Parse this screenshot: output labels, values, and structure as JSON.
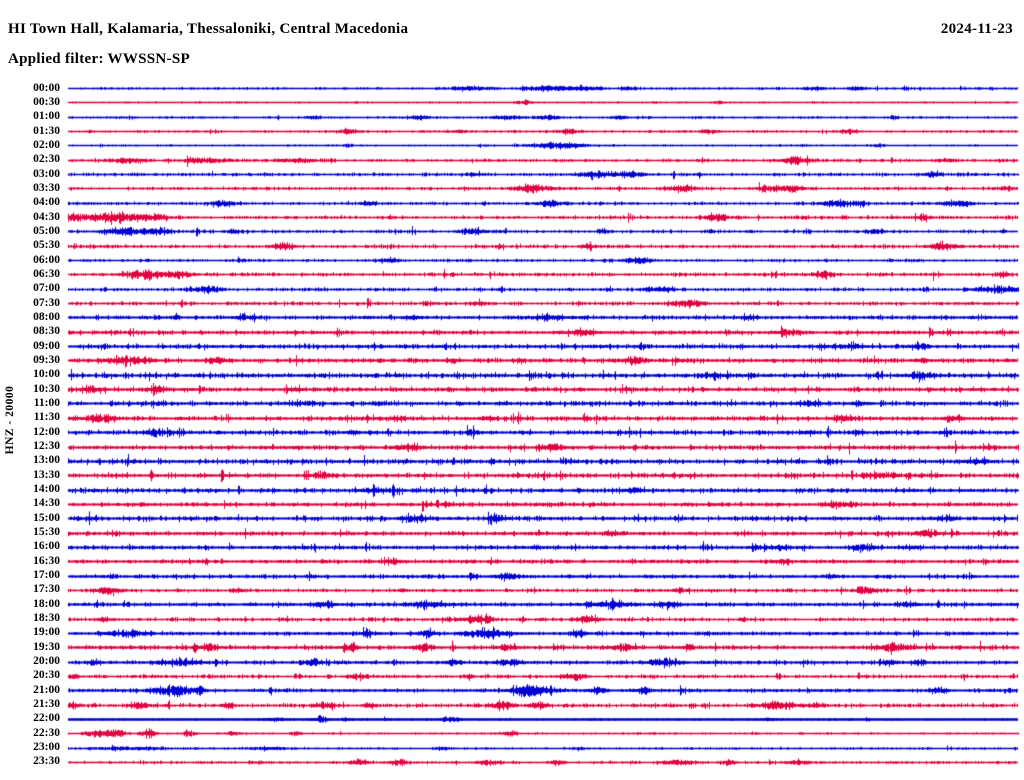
{
  "header": {
    "title": "HI Town Hall, Kalamaria, Thessaloniki, Central Macedonia",
    "date": "2024-11-23",
    "filter": "Applied filter: WWSSN-SP"
  },
  "axis": {
    "y_label": "HNZ - 20000",
    "minutes_per_line": 30,
    "first_row": "00:00",
    "last_row": "23:30"
  },
  "colors": {
    "background": "#ffffff",
    "text": "#000000",
    "trace_even": "#0000d2",
    "trace_odd": "#e1003f"
  },
  "chart_data": {
    "type": "line",
    "subtype": "helicorder-dayplot",
    "title": "HI Town Hall, Kalamaria, Thessaloniki, Central Macedonia",
    "date": "2024-11-23",
    "applied_filter": "WWSSN-SP",
    "channel": "HNZ",
    "scale": 20000,
    "minutes_per_line": 30,
    "legend_position": "none",
    "grid": false,
    "rows": [
      {
        "t": "00:00",
        "n": 0.45,
        "w": 1.5,
        "b": [
          [
            400,
            1.5,
            25
          ],
          [
            478,
            2,
            18
          ],
          [
            512,
            2.5,
            20
          ],
          [
            560,
            1.5,
            10
          ],
          [
            745,
            1.5,
            12
          ],
          [
            790,
            1.5,
            8
          ]
        ]
      },
      {
        "t": "00:30",
        "n": 0.3,
        "w": 1.5,
        "b": [
          [
            455,
            2,
            8
          ],
          [
            650,
            1.2,
            6
          ]
        ]
      },
      {
        "t": "01:00",
        "n": 0.45,
        "w": 1.5,
        "b": [
          [
            245,
            1.5,
            8
          ],
          [
            350,
            1.8,
            12
          ],
          [
            440,
            1.8,
            15
          ],
          [
            480,
            1.8,
            12
          ],
          [
            550,
            1.5,
            8
          ],
          [
            825,
            1.5,
            6
          ]
        ]
      },
      {
        "t": "01:30",
        "n": 0.5,
        "w": 1.5,
        "b": [
          [
            280,
            1.8,
            12
          ],
          [
            390,
            1.5,
            8
          ],
          [
            500,
            1.8,
            10
          ],
          [
            640,
            1.5,
            8
          ],
          [
            780,
            1.8,
            8
          ]
        ]
      },
      {
        "t": "02:00",
        "n": 0.35,
        "w": 1.5,
        "b": [
          [
            280,
            1.5,
            5
          ],
          [
            490,
            3,
            25
          ],
          [
            812,
            1.5,
            6
          ]
        ]
      },
      {
        "t": "02:30",
        "n": 0.6,
        "w": 1.6,
        "b": [
          [
            60,
            2,
            18
          ],
          [
            140,
            2,
            20
          ],
          [
            230,
            2,
            18
          ],
          [
            728,
            3,
            15
          ],
          [
            880,
            1.5,
            8
          ]
        ]
      },
      {
        "t": "03:00",
        "n": 0.7,
        "w": 1.6,
        "b": [
          [
            405,
            1.5,
            8
          ],
          [
            530,
            2.5,
            20
          ],
          [
            565,
            2.5,
            12
          ],
          [
            865,
            2.5,
            8
          ]
        ]
      },
      {
        "t": "03:30",
        "n": 0.7,
        "w": 1.6,
        "b": [
          [
            465,
            3,
            20
          ],
          [
            612,
            2.5,
            15
          ],
          [
            715,
            3,
            18
          ],
          [
            940,
            1.5,
            8
          ]
        ]
      },
      {
        "t": "04:00",
        "n": 0.7,
        "w": 1.6,
        "b": [
          [
            155,
            2.5,
            12
          ],
          [
            300,
            2,
            8
          ],
          [
            485,
            2.5,
            15
          ],
          [
            770,
            2.5,
            20
          ],
          [
            890,
            3,
            15
          ]
        ]
      },
      {
        "t": "04:30",
        "n": 0.7,
        "w": 1.7,
        "b": [
          [
            8,
            3,
            12
          ],
          [
            45,
            5,
            22
          ],
          [
            85,
            3,
            15
          ],
          [
            648,
            3,
            15
          ],
          [
            855,
            2,
            8
          ]
        ]
      },
      {
        "t": "05:00",
        "n": 0.7,
        "w": 1.6,
        "b": [
          [
            55,
            3.5,
            16
          ],
          [
            88,
            3,
            14
          ],
          [
            165,
            2,
            6
          ],
          [
            405,
            2.5,
            12
          ],
          [
            535,
            2,
            6
          ],
          [
            805,
            2,
            8
          ]
        ]
      },
      {
        "t": "05:30",
        "n": 0.8,
        "w": 1.7,
        "b": [
          [
            215,
            3,
            12
          ],
          [
            520,
            2,
            8
          ],
          [
            875,
            3,
            14
          ]
        ]
      },
      {
        "t": "06:00",
        "n": 0.6,
        "w": 1.7,
        "b": [
          [
            320,
            2.5,
            8
          ],
          [
            570,
            2.5,
            15
          ]
        ]
      },
      {
        "t": "06:30",
        "n": 0.8,
        "w": 1.7,
        "b": [
          [
            78,
            3.5,
            20
          ],
          [
            112,
            3,
            12
          ],
          [
            755,
            2.5,
            10
          ],
          [
            935,
            2,
            6
          ]
        ]
      },
      {
        "t": "07:00",
        "n": 0.8,
        "w": 1.7,
        "b": [
          [
            140,
            3,
            12
          ],
          [
            590,
            2.5,
            15
          ],
          [
            928,
            3,
            20
          ]
        ]
      },
      {
        "t": "07:30",
        "n": 0.8,
        "w": 1.7,
        "b": [
          [
            410,
            2,
            8
          ],
          [
            618,
            3,
            15
          ]
        ]
      },
      {
        "t": "08:00",
        "n": 0.9,
        "w": 1.8,
        "b": [
          [
            175,
            2.5,
            8
          ],
          [
            345,
            2,
            8
          ],
          [
            480,
            2.5,
            15
          ],
          [
            680,
            2,
            8
          ]
        ]
      },
      {
        "t": "08:30",
        "n": 1.0,
        "w": 1.8,
        "b": [
          [
            515,
            2.5,
            12
          ],
          [
            720,
            2.5,
            12
          ]
        ]
      },
      {
        "t": "09:00",
        "n": 1.2,
        "w": 1.9,
        "b": [
          [
            780,
            2,
            12
          ],
          [
            850,
            2,
            8
          ]
        ]
      },
      {
        "t": "09:30",
        "n": 1.1,
        "w": 1.9,
        "b": [
          [
            60,
            3,
            20
          ],
          [
            150,
            2.5,
            10
          ],
          [
            385,
            2,
            6
          ],
          [
            565,
            2.5,
            10
          ],
          [
            855,
            2,
            6
          ]
        ]
      },
      {
        "t": "10:00",
        "n": 1.3,
        "w": 2.1,
        "b": [
          [
            645,
            2.5,
            8
          ],
          [
            853,
            2.5,
            15
          ]
        ]
      },
      {
        "t": "10:30",
        "n": 1.2,
        "w": 1.9,
        "b": [
          [
            25,
            2.5,
            8
          ],
          [
            90,
            2.5,
            8
          ],
          [
            230,
            2,
            6
          ]
        ]
      },
      {
        "t": "11:00",
        "n": 1.2,
        "w": 2.0,
        "b": [
          [
            240,
            2,
            6
          ],
          [
            740,
            2.5,
            10
          ],
          [
            790,
            2,
            6
          ]
        ]
      },
      {
        "t": "11:30",
        "n": 1.1,
        "w": 1.9,
        "b": [
          [
            30,
            3,
            16
          ],
          [
            330,
            2,
            6
          ],
          [
            420,
            2,
            6
          ],
          [
            775,
            2.5,
            8
          ],
          [
            885,
            2.5,
            8
          ]
        ]
      },
      {
        "t": "12:00",
        "n": 1.1,
        "w": 1.9,
        "b": [
          [
            90,
            2.5,
            14
          ],
          [
            285,
            2,
            6
          ],
          [
            405,
            2,
            6
          ],
          [
            742,
            2,
            6
          ],
          [
            790,
            2,
            6
          ]
        ]
      },
      {
        "t": "12:30",
        "n": 1.1,
        "w": 1.9,
        "b": [
          [
            340,
            3,
            12
          ],
          [
            485,
            2.5,
            12
          ]
        ]
      },
      {
        "t": "13:00",
        "n": 1.3,
        "w": 2.2,
        "b": [
          [
            908,
            2.5,
            12
          ]
        ]
      },
      {
        "t": "13:30",
        "n": 1.2,
        "w": 1.9,
        "b": [
          [
            255,
            2.5,
            8
          ],
          [
            815,
            2.5,
            12
          ]
        ]
      },
      {
        "t": "14:00",
        "n": 1.2,
        "w": 2.0,
        "b": [
          [
            305,
            2.5,
            12
          ],
          [
            565,
            2.5,
            8
          ]
        ]
      },
      {
        "t": "14:30",
        "n": 1.0,
        "w": 1.8,
        "b": [
          [
            380,
            2,
            6
          ],
          [
            765,
            2.5,
            10
          ],
          [
            782,
            2,
            6
          ]
        ]
      },
      {
        "t": "15:00",
        "n": 1.2,
        "w": 1.9,
        "b": [
          [
            345,
            3,
            12
          ],
          [
            430,
            2.5,
            8
          ],
          [
            878,
            2.5,
            8
          ]
        ]
      },
      {
        "t": "15:30",
        "n": 1.0,
        "w": 1.8,
        "b": [
          [
            545,
            2,
            10
          ],
          [
            858,
            3,
            10
          ]
        ]
      },
      {
        "t": "16:00",
        "n": 1.0,
        "w": 1.8,
        "b": [
          [
            688,
            2,
            6
          ],
          [
            712,
            2,
            6
          ],
          [
            795,
            2.5,
            12
          ],
          [
            845,
            2,
            6
          ]
        ]
      },
      {
        "t": "16:30",
        "n": 0.9,
        "w": 1.8,
        "b": [
          [
            325,
            2.5,
            8
          ],
          [
            712,
            2,
            6
          ]
        ]
      },
      {
        "t": "17:00",
        "n": 0.9,
        "w": 1.8,
        "b": [
          [
            438,
            3,
            12
          ],
          [
            762,
            2,
            6
          ]
        ]
      },
      {
        "t": "17:30",
        "n": 0.8,
        "w": 1.7,
        "b": [
          [
            40,
            3,
            12
          ],
          [
            170,
            2,
            6
          ],
          [
            610,
            2,
            6
          ],
          [
            798,
            2.5,
            10
          ]
        ]
      },
      {
        "t": "18:00",
        "n": 0.9,
        "w": 1.8,
        "b": [
          [
            255,
            3,
            12
          ],
          [
            360,
            3,
            20
          ],
          [
            545,
            3.5,
            16
          ],
          [
            598,
            3,
            12
          ],
          [
            842,
            2.5,
            8
          ]
        ]
      },
      {
        "t": "18:30",
        "n": 0.9,
        "w": 1.7,
        "b": [
          [
            35,
            2,
            6
          ],
          [
            410,
            3,
            15
          ],
          [
            520,
            3,
            12
          ]
        ]
      },
      {
        "t": "19:00",
        "n": 0.9,
        "w": 1.8,
        "b": [
          [
            60,
            3,
            20
          ],
          [
            300,
            2,
            6
          ],
          [
            360,
            3,
            8
          ],
          [
            420,
            3.5,
            20
          ],
          [
            510,
            3,
            8
          ]
        ]
      },
      {
        "t": "19:30",
        "n": 1.0,
        "w": 1.8,
        "b": [
          [
            140,
            3,
            10
          ],
          [
            280,
            3,
            8
          ],
          [
            355,
            3,
            8
          ],
          [
            440,
            3,
            8
          ],
          [
            555,
            3,
            10
          ],
          [
            620,
            2.5,
            6
          ],
          [
            828,
            3.5,
            16
          ]
        ]
      },
      {
        "t": "20:00",
        "n": 0.9,
        "w": 1.8,
        "b": [
          [
            25,
            2,
            6
          ],
          [
            110,
            3,
            20
          ],
          [
            245,
            2.5,
            8
          ],
          [
            385,
            2.5,
            8
          ],
          [
            440,
            3,
            12
          ],
          [
            595,
            3,
            16
          ],
          [
            820,
            2.5,
            6
          ],
          [
            850,
            2.5,
            6
          ]
        ]
      },
      {
        "t": "20:30",
        "n": 0.8,
        "w": 1.7,
        "b": [
          [
            2,
            3,
            6
          ],
          [
            290,
            2.5,
            8
          ],
          [
            400,
            2,
            6
          ],
          [
            505,
            3,
            12
          ]
        ]
      },
      {
        "t": "21:00",
        "n": 0.9,
        "w": 1.8,
        "b": [
          [
            107,
            4.5,
            18
          ],
          [
            132,
            3,
            5
          ],
          [
            455,
            3,
            12
          ],
          [
            468,
            4.5,
            20
          ],
          [
            530,
            3,
            8
          ],
          [
            575,
            3,
            8
          ],
          [
            870,
            2.5,
            8
          ]
        ]
      },
      {
        "t": "21:30",
        "n": 0.9,
        "w": 1.7,
        "b": [
          [
            2,
            3.5,
            8
          ],
          [
            70,
            3,
            8
          ],
          [
            160,
            2.5,
            6
          ],
          [
            255,
            3,
            8
          ],
          [
            300,
            2.5,
            6
          ],
          [
            435,
            3.5,
            10
          ],
          [
            470,
            3.5,
            8
          ],
          [
            710,
            3,
            20
          ],
          [
            748,
            2.5,
            8
          ]
        ]
      },
      {
        "t": "22:00",
        "n": 0.4,
        "w": 2.3,
        "b": [
          [
            205,
            1.5,
            12
          ],
          [
            252,
            2.5,
            8
          ],
          [
            277,
            2,
            4
          ],
          [
            380,
            2,
            10
          ],
          [
            700,
            1.5,
            6
          ]
        ]
      },
      {
        "t": "22:30",
        "n": 0.35,
        "w": 1.5,
        "b": [
          [
            30,
            3.5,
            12
          ],
          [
            48,
            4,
            8
          ],
          [
            80,
            3.5,
            8
          ],
          [
            120,
            2.5,
            6
          ],
          [
            165,
            2,
            6
          ],
          [
            228,
            2,
            5
          ],
          [
            442,
            2,
            8
          ]
        ]
      },
      {
        "t": "23:00",
        "n": 0.45,
        "w": 1.5,
        "b": [
          [
            60,
            1.3,
            35
          ],
          [
            200,
            1.3,
            18
          ],
          [
            375,
            1.3,
            6
          ],
          [
            510,
            1.3,
            5
          ]
        ]
      },
      {
        "t": "23:30",
        "n": 0.6,
        "w": 1.6,
        "b": [
          [
            290,
            2.2,
            12
          ],
          [
            330,
            2.2,
            10
          ],
          [
            420,
            2.2,
            12
          ],
          [
            490,
            2,
            8
          ],
          [
            610,
            2.2,
            15
          ],
          [
            660,
            2,
            8
          ],
          [
            730,
            2.2,
            10
          ]
        ]
      }
    ]
  }
}
